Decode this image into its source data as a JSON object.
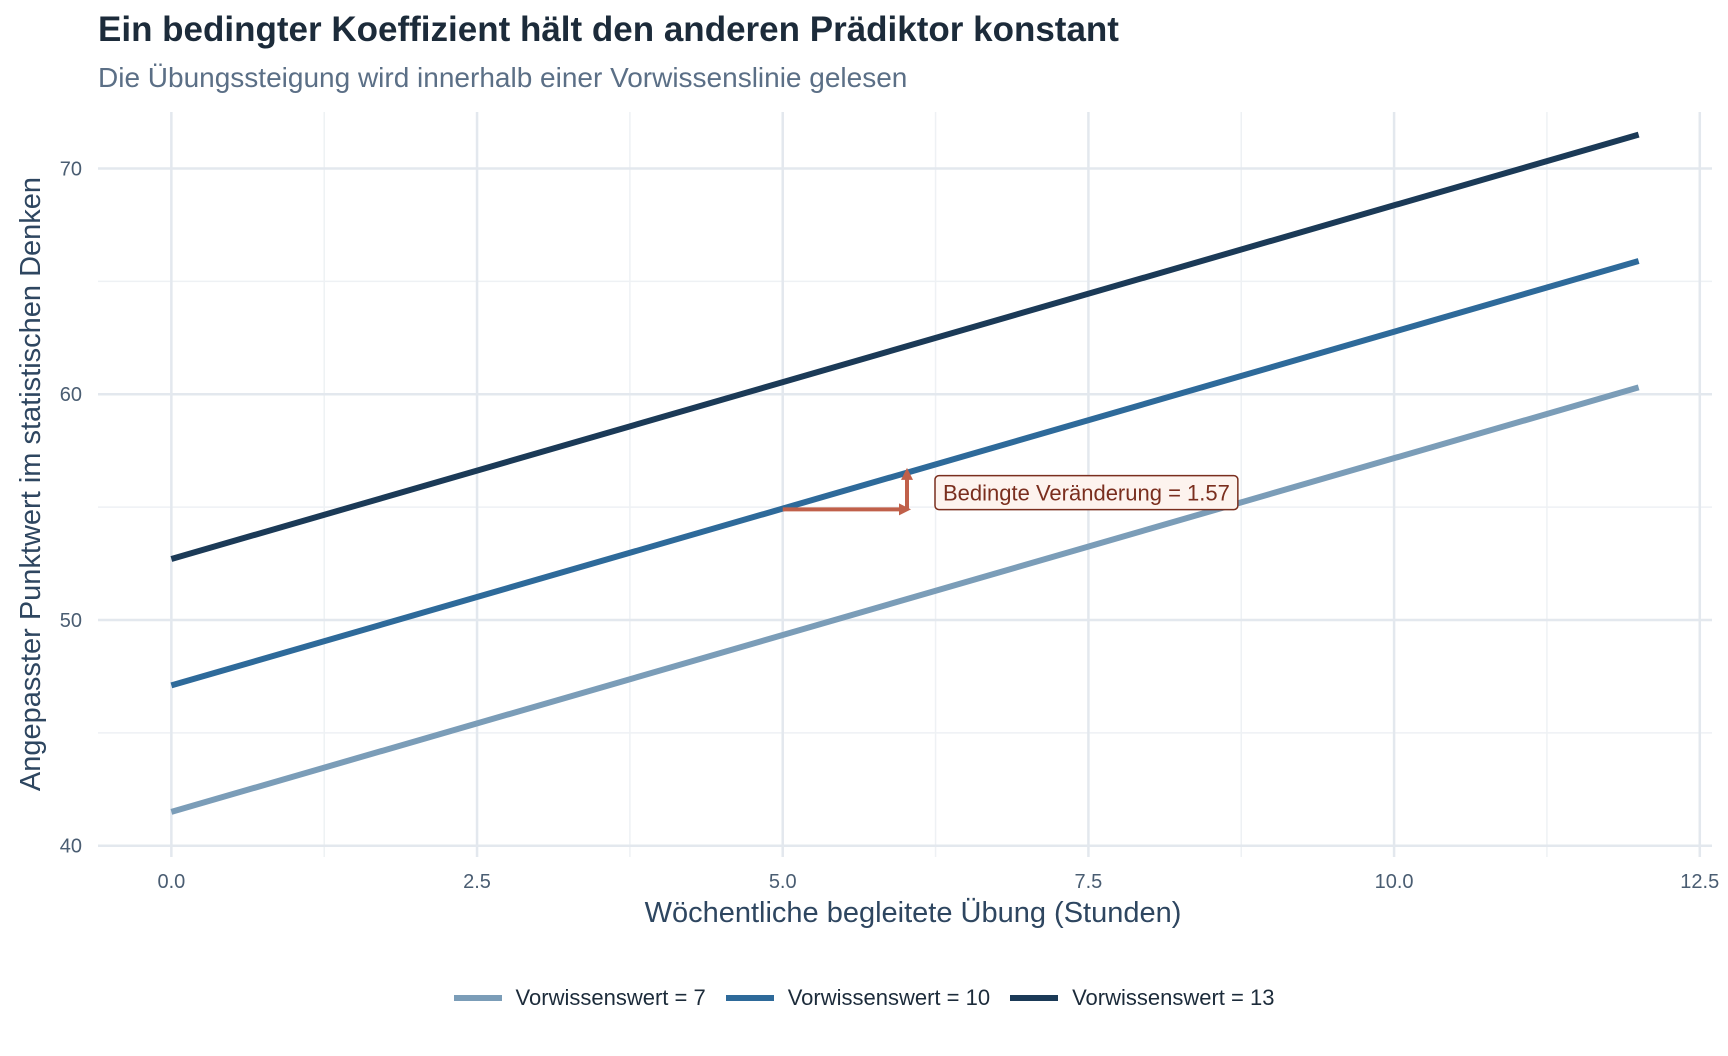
{
  "chart_data": {
    "type": "line",
    "title": "Ein bedingter Koeffizient hält den anderen Prädiktor konstant",
    "subtitle": "Die Übungssteigung wird innerhalb einer Vorwissenslinie gelesen",
    "xlabel": "Wöchentliche begleitete Übung (Stunden)",
    "ylabel": "Angepasster Punktwert im statistischen Denken",
    "xlim": [
      -0.6,
      12.6
    ],
    "ylim": [
      39.5,
      72.5
    ],
    "x_ticks": [
      0.0,
      2.5,
      5.0,
      7.5,
      10.0,
      12.5
    ],
    "x_tick_labels": [
      "0.0",
      "2.5",
      "5.0",
      "7.5",
      "10.0",
      "12.5"
    ],
    "y_ticks": [
      40,
      50,
      60,
      70
    ],
    "y_tick_labels": [
      "40",
      "50",
      "60",
      "70"
    ],
    "grid": true,
    "legend_position": "bottom",
    "series": [
      {
        "name": "Vorwissenswert = 7",
        "color": "#7b9db8",
        "x": [
          0,
          12
        ],
        "y": [
          41.5,
          60.3
        ]
      },
      {
        "name": "Vorwissenswert = 10",
        "color": "#2e6a9a",
        "x": [
          0,
          12
        ],
        "y": [
          47.1,
          65.9
        ]
      },
      {
        "name": "Vorwissenswert = 13",
        "color": "#1b3a57",
        "x": [
          0,
          12
        ],
        "y": [
          52.7,
          71.5
        ]
      }
    ],
    "annotation": {
      "label": "Bedingte Veränderung = 1.57",
      "color": "#c0604a",
      "text_color": "#7a2e1e",
      "from_x": 5,
      "to_x": 6,
      "base_y": 54.9,
      "delta": 1.57
    }
  }
}
